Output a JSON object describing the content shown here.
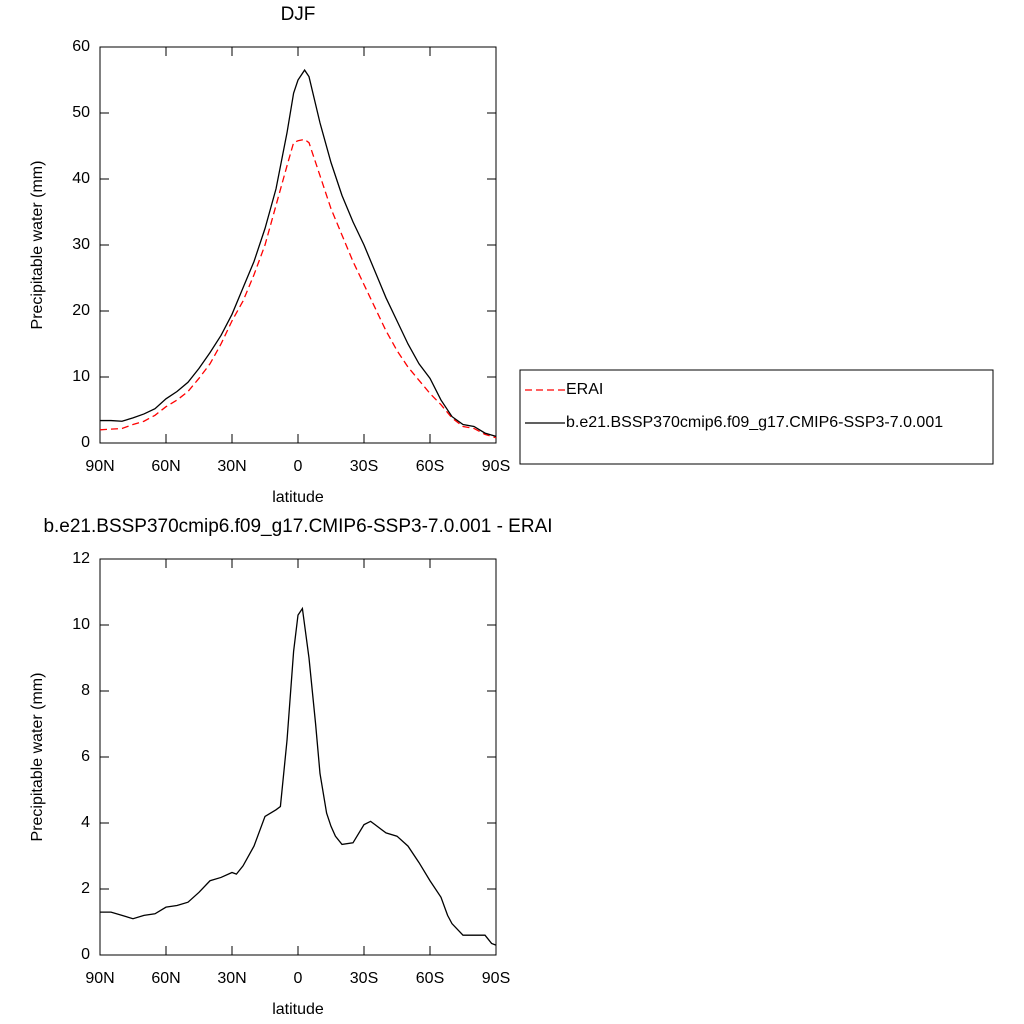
{
  "chart_data": [
    {
      "type": "line",
      "title": "DJF",
      "xlabel": "latitude",
      "ylabel": "Precipitable water (mm)",
      "x": [
        90,
        85,
        80,
        75,
        70,
        65,
        60,
        55,
        50,
        45,
        40,
        35,
        30,
        25,
        20,
        15,
        10,
        5,
        2,
        0,
        -3,
        -5,
        -10,
        -15,
        -20,
        -25,
        -30,
        -35,
        -40,
        -45,
        -50,
        -55,
        -60,
        -65,
        -70,
        -75,
        -80,
        -85,
        -90
      ],
      "series": [
        {
          "name": "ERAI",
          "color": "#ff0000",
          "dash": true,
          "values": [
            2.0,
            2.1,
            2.2,
            2.8,
            3.3,
            4.2,
            5.5,
            6.5,
            7.8,
            9.8,
            12,
            15,
            18.5,
            21.5,
            25.5,
            30,
            36,
            42,
            45.5,
            45.8,
            46,
            45.5,
            40.5,
            35.5,
            31.5,
            27.5,
            24,
            20.5,
            17,
            14,
            11.5,
            9.5,
            7.5,
            5.8,
            3.8,
            2.5,
            2.2,
            1.3,
            0.8
          ]
        },
        {
          "name": "b.e21.BSSP370cmip6.f09_g17.CMIP6-SSP3-7.0.001",
          "color": "#000000",
          "dash": false,
          "values": [
            3.4,
            3.4,
            3.3,
            3.8,
            4.4,
            5.2,
            6.7,
            7.8,
            9.2,
            11.3,
            13.7,
            16.3,
            19.5,
            23.5,
            27.5,
            32.5,
            38.5,
            47,
            53,
            55,
            56.5,
            55.5,
            48.5,
            42.5,
            37.5,
            33.5,
            30,
            26,
            22,
            18.5,
            15,
            12,
            9.8,
            6.5,
            4,
            2.8,
            2.5,
            1.5,
            1.0
          ]
        }
      ],
      "xlim": [
        90,
        -90
      ],
      "xticks": [
        {
          "value": 90,
          "label": "90N"
        },
        {
          "value": 60,
          "label": "60N"
        },
        {
          "value": 30,
          "label": "30N"
        },
        0,
        {
          "value": -30,
          "label": "30S"
        },
        {
          "value": -60,
          "label": "60S"
        },
        {
          "value": -90,
          "label": "90S"
        }
      ],
      "ylim": [
        0,
        60
      ],
      "yticks": [
        0,
        10,
        20,
        30,
        40,
        50,
        60
      ],
      "legend": "right"
    },
    {
      "type": "line",
      "title": "b.e21.BSSP370cmip6.f09_g17.CMIP6-SSP3-7.0.001 - ERAI",
      "xlabel": "latitude",
      "ylabel": "Precipitable water (mm)",
      "x": [
        90,
        85,
        80,
        75,
        70,
        65,
        60,
        55,
        50,
        45,
        40,
        35,
        30,
        28,
        25,
        20,
        15,
        10,
        8,
        5,
        2,
        0,
        -2,
        -5,
        -8,
        -10,
        -13,
        -15,
        -17,
        -20,
        -25,
        -30,
        -33,
        -35,
        -40,
        -45,
        -50,
        -55,
        -60,
        -65,
        -68,
        -70,
        -75,
        -80,
        -85,
        -88,
        -90
      ],
      "series": [
        {
          "color": "#000000",
          "dash": false,
          "values": [
            1.3,
            1.3,
            1.2,
            1.1,
            1.2,
            1.25,
            1.45,
            1.5,
            1.6,
            1.9,
            2.25,
            2.35,
            2.5,
            2.45,
            2.7,
            3.3,
            4.2,
            4.4,
            4.5,
            6.5,
            9.2,
            10.3,
            10.5,
            9.0,
            7,
            5.5,
            4.3,
            3.9,
            3.6,
            3.35,
            3.4,
            3.95,
            4.05,
            3.95,
            3.7,
            3.6,
            3.3,
            2.8,
            2.25,
            1.75,
            1.2,
            0.95,
            0.6,
            0.6,
            0.6,
            0.35,
            0.3
          ]
        }
      ],
      "xlim": [
        90,
        -90
      ],
      "xticks": [
        {
          "value": 90,
          "label": "90N"
        },
        {
          "value": 60,
          "label": "60N"
        },
        {
          "value": 30,
          "label": "30N"
        },
        0,
        {
          "value": -30,
          "label": "30S"
        },
        {
          "value": -60,
          "label": "60S"
        },
        {
          "value": -90,
          "label": "90S"
        }
      ],
      "ylim": [
        0,
        12
      ],
      "yticks": [
        0,
        2,
        4,
        6,
        8,
        10,
        12
      ]
    }
  ]
}
